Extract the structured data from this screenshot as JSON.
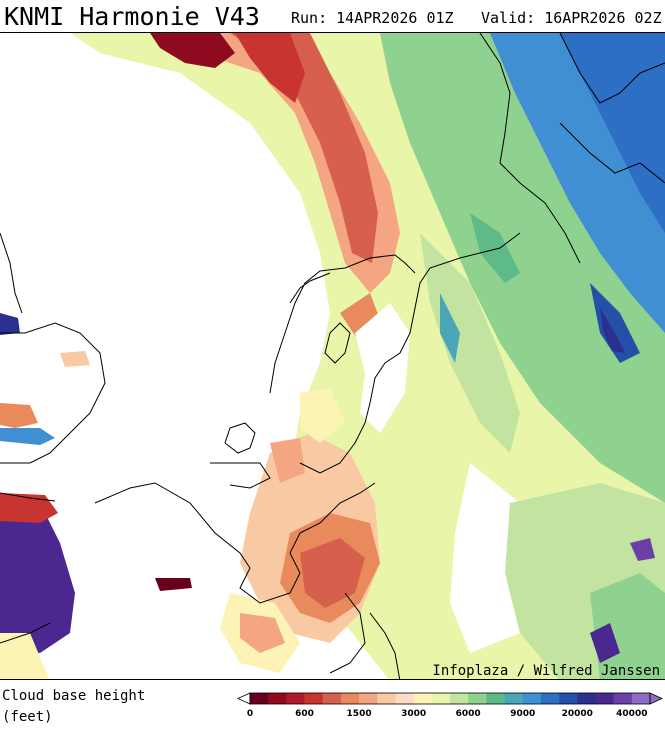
{
  "header": {
    "title": "KNMI Harmonie V43",
    "run": "Run: 14APR2026 01Z",
    "valid": "Valid: 16APR2026 02Z"
  },
  "map": {
    "credit": "Infoplaza / Wilfred Janssen"
  },
  "legend": {
    "label_line1": "Cloud base height",
    "label_line2": "(feet)",
    "colors": [
      "#67001f",
      "#8e0a1e",
      "#b2182b",
      "#c8342f",
      "#d6604d",
      "#e98a5d",
      "#f4a582",
      "#f9c9a3",
      "#fddbc7",
      "#fcf3b4",
      "#e9f5a8",
      "#c2e4a0",
      "#8fd18f",
      "#5ebb88",
      "#4ba6b8",
      "#3f8fd2",
      "#2c6fc4",
      "#2450a8",
      "#2b2f8e",
      "#4b2790",
      "#6c3fa6",
      "#8c6bc0"
    ],
    "ticks": [
      "0",
      "600",
      "1500",
      "3000",
      "6000",
      "9000",
      "20000",
      "40000"
    ]
  }
}
